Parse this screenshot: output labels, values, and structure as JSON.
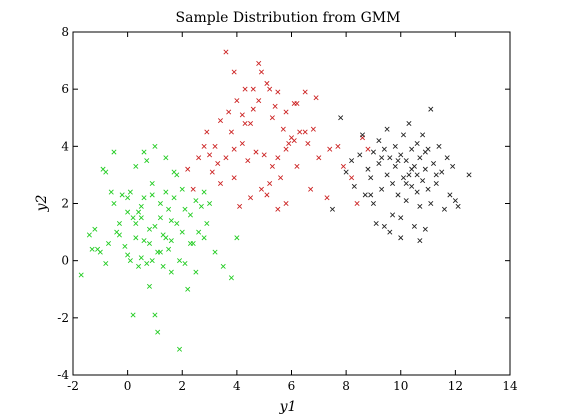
{
  "chart_data": {
    "type": "scatter",
    "title": "Sample Distribution from GMM",
    "xlabel": "y1",
    "ylabel": "y2",
    "xlim": [
      -2,
      14
    ],
    "ylim": [
      -4,
      8
    ],
    "xticks": [
      -2,
      0,
      2,
      4,
      6,
      8,
      10,
      12,
      14
    ],
    "yticks": [
      -4,
      -2,
      0,
      2,
      4,
      6,
      8
    ],
    "grid": false,
    "legend": "none",
    "marker": "x",
    "series": [
      {
        "color": "#22cc22",
        "points": [
          [
            -1.7,
            -0.5
          ],
          [
            -1.4,
            0.9
          ],
          [
            -1.3,
            0.4
          ],
          [
            -1.2,
            1.1
          ],
          [
            -1.0,
            0.3
          ],
          [
            -0.9,
            3.2
          ],
          [
            -0.8,
            -0.1
          ],
          [
            -0.8,
            3.1
          ],
          [
            -0.7,
            0.6
          ],
          [
            -0.6,
            2.4
          ],
          [
            -0.5,
            3.8
          ],
          [
            -0.5,
            2.0
          ],
          [
            -0.4,
            1.0
          ],
          [
            -0.3,
            1.3
          ],
          [
            -0.2,
            2.3
          ],
          [
            -0.1,
            0.5
          ],
          [
            0.0,
            2.2
          ],
          [
            0.0,
            0.2
          ],
          [
            0.1,
            0.0
          ],
          [
            0.1,
            2.4
          ],
          [
            0.2,
            1.5
          ],
          [
            0.2,
            -1.9
          ],
          [
            0.3,
            0.8
          ],
          [
            0.3,
            3.3
          ],
          [
            0.4,
            1.7
          ],
          [
            0.4,
            -0.2
          ],
          [
            0.5,
            0.1
          ],
          [
            0.5,
            1.9
          ],
          [
            0.6,
            2.2
          ],
          [
            0.6,
            0.7
          ],
          [
            0.7,
            -0.1
          ],
          [
            0.7,
            3.5
          ],
          [
            0.8,
            0.6
          ],
          [
            0.8,
            -0.9
          ],
          [
            0.8,
            1.1
          ],
          [
            0.9,
            2.7
          ],
          [
            0.9,
            0.0
          ],
          [
            1.0,
            4.0
          ],
          [
            1.0,
            1.2
          ],
          [
            1.0,
            -1.9
          ],
          [
            1.1,
            -2.5
          ],
          [
            1.1,
            0.3
          ],
          [
            1.2,
            2.0
          ],
          [
            1.2,
            1.5
          ],
          [
            1.3,
            0.9
          ],
          [
            1.3,
            -0.2
          ],
          [
            1.4,
            2.4
          ],
          [
            1.4,
            3.6
          ],
          [
            1.5,
            0.4
          ],
          [
            1.5,
            1.8
          ],
          [
            1.6,
            -0.4
          ],
          [
            1.6,
            0.7
          ],
          [
            1.7,
            2.2
          ],
          [
            1.8,
            1.3
          ],
          [
            1.8,
            3.0
          ],
          [
            1.9,
            -3.1
          ],
          [
            1.9,
            0.0
          ],
          [
            2.0,
            1.0
          ],
          [
            2.0,
            2.5
          ],
          [
            2.1,
            -0.1
          ],
          [
            2.2,
            -1.0
          ],
          [
            2.3,
            1.6
          ],
          [
            2.4,
            0.6
          ],
          [
            2.5,
            2.1
          ],
          [
            2.5,
            -0.4
          ],
          [
            2.6,
            1.0
          ],
          [
            2.7,
            1.9
          ],
          [
            2.8,
            0.8
          ],
          [
            2.9,
            1.3
          ],
          [
            3.0,
            2.0
          ],
          [
            3.2,
            0.3
          ],
          [
            3.5,
            -0.2
          ],
          [
            3.8,
            -0.6
          ],
          [
            4.0,
            0.8
          ],
          [
            -1.1,
            0.4
          ],
          [
            0.3,
            1.3
          ],
          [
            0.5,
            1.5
          ],
          [
            1.2,
            0.3
          ],
          [
            1.6,
            1.4
          ],
          [
            2.3,
            0.6
          ],
          [
            0.9,
            2.3
          ],
          [
            0.0,
            1.7
          ],
          [
            -0.3,
            0.9
          ],
          [
            1.4,
            0.8
          ],
          [
            2.8,
            2.4
          ],
          [
            0.6,
            3.8
          ],
          [
            1.7,
            3.1
          ],
          [
            2.1,
            1.8
          ]
        ]
      },
      {
        "color": "#cc2222",
        "points": [
          [
            3.6,
            7.3
          ],
          [
            4.0,
            5.6
          ],
          [
            3.9,
            6.6
          ],
          [
            4.3,
            6.0
          ],
          [
            4.6,
            5.3
          ],
          [
            4.8,
            6.9
          ],
          [
            4.9,
            6.6
          ],
          [
            5.1,
            6.2
          ],
          [
            5.2,
            6.0
          ],
          [
            5.5,
            5.9
          ],
          [
            5.8,
            5.2
          ],
          [
            6.2,
            5.5
          ],
          [
            6.5,
            5.9
          ],
          [
            6.9,
            5.7
          ],
          [
            6.1,
            5.5
          ],
          [
            5.3,
            5.0
          ],
          [
            4.5,
            4.8
          ],
          [
            4.2,
            5.1
          ],
          [
            3.8,
            4.5
          ],
          [
            3.4,
            4.9
          ],
          [
            3.2,
            4.0
          ],
          [
            2.9,
            4.5
          ],
          [
            2.8,
            4.0
          ],
          [
            2.6,
            3.6
          ],
          [
            3.0,
            3.7
          ],
          [
            3.3,
            3.4
          ],
          [
            3.6,
            3.6
          ],
          [
            3.9,
            3.9
          ],
          [
            4.2,
            4.1
          ],
          [
            4.4,
            3.5
          ],
          [
            4.7,
            3.8
          ],
          [
            5.0,
            3.7
          ],
          [
            5.3,
            3.3
          ],
          [
            5.5,
            3.6
          ],
          [
            5.8,
            3.9
          ],
          [
            6.0,
            4.3
          ],
          [
            6.3,
            4.5
          ],
          [
            6.6,
            4.1
          ],
          [
            6.8,
            4.6
          ],
          [
            7.0,
            3.6
          ],
          [
            7.4,
            3.9
          ],
          [
            7.7,
            4.0
          ],
          [
            7.9,
            3.3
          ],
          [
            8.2,
            2.9
          ],
          [
            8.4,
            2.0
          ],
          [
            8.6,
            4.3
          ],
          [
            8.8,
            3.9
          ],
          [
            6.2,
            3.3
          ],
          [
            5.6,
            2.9
          ],
          [
            5.2,
            2.7
          ],
          [
            4.9,
            2.5
          ],
          [
            4.5,
            2.2
          ],
          [
            4.1,
            1.9
          ],
          [
            3.9,
            2.9
          ],
          [
            3.4,
            2.7
          ],
          [
            3.1,
            3.1
          ],
          [
            2.4,
            2.5
          ],
          [
            2.2,
            3.2
          ],
          [
            5.1,
            2.3
          ],
          [
            5.8,
            2.0
          ],
          [
            5.5,
            1.8
          ],
          [
            6.7,
            2.5
          ],
          [
            7.3,
            2.2
          ],
          [
            6.1,
            4.2
          ],
          [
            5.7,
            4.6
          ],
          [
            4.3,
            4.8
          ],
          [
            4.8,
            5.6
          ],
          [
            5.4,
            5.4
          ],
          [
            6.5,
            4.5
          ],
          [
            3.7,
            5.2
          ],
          [
            4.6,
            6.0
          ],
          [
            5.9,
            4.1
          ]
        ]
      },
      {
        "color": "#222222",
        "points": [
          [
            7.5,
            1.8
          ],
          [
            7.8,
            5.0
          ],
          [
            8.0,
            3.1
          ],
          [
            8.2,
            3.5
          ],
          [
            8.3,
            2.6
          ],
          [
            8.5,
            3.7
          ],
          [
            8.6,
            4.4
          ],
          [
            8.7,
            2.3
          ],
          [
            8.8,
            3.2
          ],
          [
            8.9,
            2.9
          ],
          [
            9.0,
            3.8
          ],
          [
            9.0,
            2.0
          ],
          [
            9.1,
            1.3
          ],
          [
            9.2,
            3.4
          ],
          [
            9.2,
            4.2
          ],
          [
            9.3,
            2.5
          ],
          [
            9.4,
            3.9
          ],
          [
            9.4,
            1.2
          ],
          [
            9.5,
            3.0
          ],
          [
            9.5,
            4.6
          ],
          [
            9.6,
            3.6
          ],
          [
            9.7,
            2.7
          ],
          [
            9.7,
            1.6
          ],
          [
            9.8,
            3.3
          ],
          [
            9.8,
            4.0
          ],
          [
            9.9,
            2.3
          ],
          [
            10.0,
            3.7
          ],
          [
            10.0,
            1.5
          ],
          [
            10.1,
            2.9
          ],
          [
            10.1,
            4.4
          ],
          [
            10.2,
            3.5
          ],
          [
            10.2,
            2.1
          ],
          [
            10.3,
            3.0
          ],
          [
            10.3,
            4.8
          ],
          [
            10.4,
            2.6
          ],
          [
            10.4,
            3.9
          ],
          [
            10.5,
            1.2
          ],
          [
            10.5,
            3.3
          ],
          [
            10.6,
            4.1
          ],
          [
            10.6,
            2.4
          ],
          [
            10.7,
            3.6
          ],
          [
            10.7,
            1.9
          ],
          [
            10.8,
            2.8
          ],
          [
            10.8,
            4.4
          ],
          [
            10.9,
            3.2
          ],
          [
            10.9,
            1.1
          ],
          [
            11.0,
            2.5
          ],
          [
            11.0,
            3.9
          ],
          [
            11.1,
            5.3
          ],
          [
            11.1,
            2.0
          ],
          [
            11.2,
            3.4
          ],
          [
            11.3,
            2.7
          ],
          [
            11.4,
            4.0
          ],
          [
            11.5,
            3.1
          ],
          [
            11.6,
            1.8
          ],
          [
            11.7,
            3.6
          ],
          [
            11.8,
            2.3
          ],
          [
            11.9,
            3.3
          ],
          [
            12.0,
            2.1
          ],
          [
            12.1,
            1.9
          ],
          [
            12.5,
            3.0
          ],
          [
            10.0,
            0.8
          ],
          [
            10.7,
            0.7
          ],
          [
            9.6,
            1.0
          ],
          [
            10.4,
            3.2
          ],
          [
            9.9,
            3.5
          ],
          [
            10.9,
            3.8
          ],
          [
            9.3,
            3.6
          ],
          [
            10.2,
            2.7
          ],
          [
            11.3,
            3.0
          ],
          [
            8.9,
            2.3
          ],
          [
            10.6,
            3.0
          ]
        ]
      }
    ]
  }
}
